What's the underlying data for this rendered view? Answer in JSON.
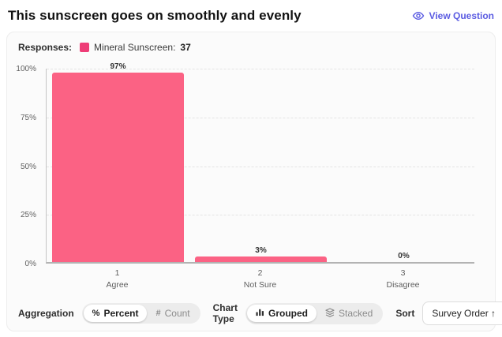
{
  "header": {
    "title": "This sunscreen goes on smoothly and evenly",
    "view_question_label": "View Question",
    "accent_color": "#5b5ce2"
  },
  "legend": {
    "responses_label": "Responses:",
    "series_label": "Mineral Sunscreen:",
    "series_count": "37",
    "swatch_color": "#ee3d77"
  },
  "chart_data": {
    "type": "bar",
    "title": "",
    "xlabel": "",
    "ylabel": "",
    "categories": [
      "1 Agree",
      "2 Not Sure",
      "3 Disagree"
    ],
    "category_lines": [
      [
        "1",
        "Agree"
      ],
      [
        "2",
        "Not Sure"
      ],
      [
        "3",
        "Disagree"
      ]
    ],
    "series": [
      {
        "name": "Mineral Sunscreen",
        "count": 37,
        "values": [
          97,
          3,
          0
        ]
      }
    ],
    "value_labels": [
      "97%",
      "3%",
      "0%"
    ],
    "ylim": [
      0,
      100
    ],
    "yticks": [
      0,
      25,
      50,
      75,
      100
    ],
    "ytick_labels": [
      "0%",
      "25%",
      "50%",
      "75%",
      "100%"
    ],
    "grid": "horizontal-dashed",
    "legend_position": "top-left",
    "bar_color": "#fb6284"
  },
  "footer": {
    "aggregation_label": "Aggregation",
    "aggregation_options": [
      {
        "label": "Percent",
        "icon": "percent-icon",
        "icon_glyph": "%",
        "selected": true
      },
      {
        "label": "Count",
        "icon": "hash-icon",
        "icon_glyph": "#",
        "selected": false
      }
    ],
    "chart_type_label": "Chart Type",
    "chart_type_options": [
      {
        "label": "Grouped",
        "icon": "bar-chart-icon",
        "selected": true
      },
      {
        "label": "Stacked",
        "icon": "layers-icon",
        "selected": false
      }
    ],
    "sort_label": "Sort",
    "sort_value": "Survey Order ↑"
  }
}
